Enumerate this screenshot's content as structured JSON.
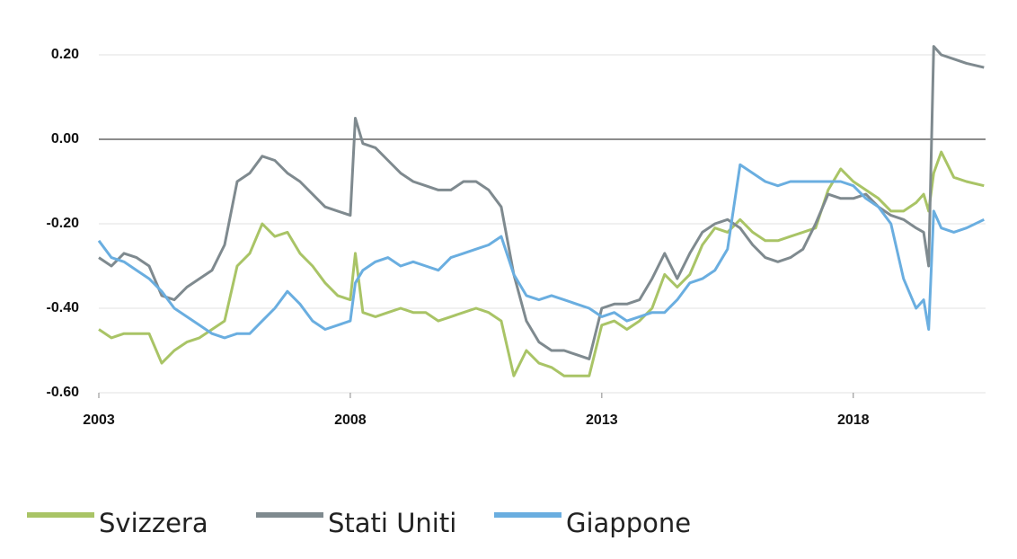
{
  "chart_data": {
    "type": "line",
    "x": [
      2003.0,
      2003.25,
      2003.5,
      2003.75,
      2004.0,
      2004.25,
      2004.5,
      2004.75,
      2005.0,
      2005.25,
      2005.5,
      2005.75,
      2006.0,
      2006.25,
      2006.5,
      2006.75,
      2007.0,
      2007.25,
      2007.5,
      2007.75,
      2008.0,
      2008.1,
      2008.25,
      2008.5,
      2008.75,
      2009.0,
      2009.25,
      2009.5,
      2009.75,
      2010.0,
      2010.25,
      2010.5,
      2010.75,
      2011.0,
      2011.25,
      2011.5,
      2011.75,
      2012.0,
      2012.25,
      2012.5,
      2012.75,
      2013.0,
      2013.25,
      2013.5,
      2013.75,
      2014.0,
      2014.25,
      2014.5,
      2014.75,
      2015.0,
      2015.25,
      2015.5,
      2015.75,
      2016.0,
      2016.25,
      2016.5,
      2016.75,
      2017.0,
      2017.25,
      2017.5,
      2017.75,
      2018.0,
      2018.25,
      2018.5,
      2018.75,
      2019.0,
      2019.25,
      2019.4,
      2019.5,
      2019.6,
      2019.75,
      2020.0,
      2020.25,
      2020.6
    ],
    "series": [
      {
        "name": "Svizzera",
        "color": "#a9c466",
        "values": [
          -0.45,
          -0.47,
          -0.46,
          -0.46,
          -0.46,
          -0.53,
          -0.5,
          -0.48,
          -0.47,
          -0.45,
          -0.43,
          -0.3,
          -0.27,
          -0.2,
          -0.23,
          -0.22,
          -0.27,
          -0.3,
          -0.34,
          -0.37,
          -0.38,
          -0.27,
          -0.41,
          -0.42,
          -0.41,
          -0.4,
          -0.41,
          -0.41,
          -0.43,
          -0.42,
          -0.41,
          -0.4,
          -0.41,
          -0.43,
          -0.56,
          -0.5,
          -0.53,
          -0.54,
          -0.56,
          -0.56,
          -0.56,
          -0.44,
          -0.43,
          -0.45,
          -0.43,
          -0.4,
          -0.32,
          -0.35,
          -0.32,
          -0.25,
          -0.21,
          -0.22,
          -0.19,
          -0.22,
          -0.24,
          -0.24,
          -0.23,
          -0.22,
          -0.21,
          -0.12,
          -0.07,
          -0.1,
          -0.12,
          -0.14,
          -0.17,
          -0.17,
          -0.15,
          -0.13,
          -0.17,
          -0.08,
          -0.03,
          -0.09,
          -0.1,
          -0.11
        ]
      },
      {
        "name": "Stati Uniti",
        "color": "#7f8a8f",
        "values": [
          -0.28,
          -0.3,
          -0.27,
          -0.28,
          -0.3,
          -0.37,
          -0.38,
          -0.35,
          -0.33,
          -0.31,
          -0.25,
          -0.1,
          -0.08,
          -0.04,
          -0.05,
          -0.08,
          -0.1,
          -0.13,
          -0.16,
          -0.17,
          -0.18,
          0.05,
          -0.01,
          -0.02,
          -0.05,
          -0.08,
          -0.1,
          -0.11,
          -0.12,
          -0.12,
          -0.1,
          -0.1,
          -0.12,
          -0.16,
          -0.32,
          -0.43,
          -0.48,
          -0.5,
          -0.5,
          -0.51,
          -0.52,
          -0.4,
          -0.39,
          -0.39,
          -0.38,
          -0.33,
          -0.27,
          -0.33,
          -0.27,
          -0.22,
          -0.2,
          -0.19,
          -0.21,
          -0.25,
          -0.28,
          -0.29,
          -0.28,
          -0.26,
          -0.2,
          -0.13,
          -0.14,
          -0.14,
          -0.13,
          -0.16,
          -0.18,
          -0.19,
          -0.21,
          -0.22,
          -0.3,
          0.22,
          0.2,
          0.19,
          0.18,
          0.17
        ]
      },
      {
        "name": "Giappone",
        "color": "#6aaee0",
        "values": [
          -0.24,
          -0.28,
          -0.29,
          -0.31,
          -0.33,
          -0.36,
          -0.4,
          -0.42,
          -0.44,
          -0.46,
          -0.47,
          -0.46,
          -0.46,
          -0.43,
          -0.4,
          -0.36,
          -0.39,
          -0.43,
          -0.45,
          -0.44,
          -0.43,
          -0.34,
          -0.31,
          -0.29,
          -0.28,
          -0.3,
          -0.29,
          -0.3,
          -0.31,
          -0.28,
          -0.27,
          -0.26,
          -0.25,
          -0.23,
          -0.32,
          -0.37,
          -0.38,
          -0.37,
          -0.38,
          -0.39,
          -0.4,
          -0.42,
          -0.41,
          -0.43,
          -0.42,
          -0.41,
          -0.41,
          -0.38,
          -0.34,
          -0.33,
          -0.31,
          -0.26,
          -0.06,
          -0.08,
          -0.1,
          -0.11,
          -0.1,
          -0.1,
          -0.1,
          -0.1,
          -0.1,
          -0.11,
          -0.14,
          -0.16,
          -0.2,
          -0.33,
          -0.4,
          -0.38,
          -0.45,
          -0.17,
          -0.21,
          -0.22,
          -0.21,
          -0.19
        ]
      }
    ],
    "xlim": [
      2003,
      2020.63
    ],
    "xticks": [
      2003,
      2008,
      2013,
      2018
    ],
    "ylim": [
      -0.6,
      0.25
    ],
    "yticks": [
      {
        "value": 0.2,
        "label": "0.20"
      },
      {
        "value": 0,
        "label": "0.00"
      },
      {
        "value": -0.2,
        "label": "-0.20"
      },
      {
        "value": -0.4,
        "label": "-0.40"
      },
      {
        "value": -0.6,
        "label": "-0.60"
      }
    ],
    "grid": true
  }
}
